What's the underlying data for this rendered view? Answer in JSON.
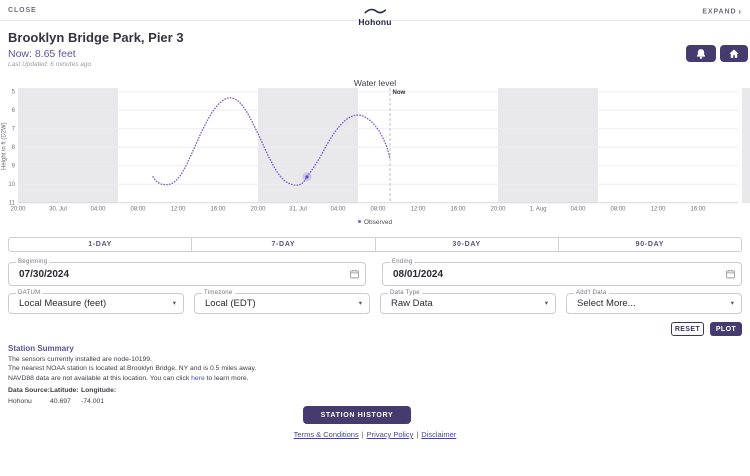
{
  "topbar": {
    "close": "CLOSE",
    "brand": "Hohonu",
    "expand": "EXPAND",
    "expand_chevron": "›"
  },
  "header": {
    "title": "Brooklyn Bridge Park, Pier 3",
    "now": "Now: 8.65 feet",
    "last_updated": "Last Updated: 6 minutes ago"
  },
  "chart_data": {
    "type": "line",
    "title": "Water level",
    "ylabel": "Height in ft (D2W)",
    "y_ticks": [
      5,
      6,
      7,
      8,
      9,
      10,
      11
    ],
    "y_inverted_axis": true,
    "ylim": [
      5,
      11
    ],
    "x_hours_domain": [
      0,
      72
    ],
    "x_domain_note": "hours since 2024-07-29 20:00 EDT",
    "x_ticks": [
      {
        "t": 0,
        "label": "20:00"
      },
      {
        "t": 4,
        "label": "30. Jul"
      },
      {
        "t": 8,
        "label": "04:00"
      },
      {
        "t": 12,
        "label": "08:00"
      },
      {
        "t": 16,
        "label": "12:00"
      },
      {
        "t": 20,
        "label": "16:00"
      },
      {
        "t": 24,
        "label": "20:00"
      },
      {
        "t": 28,
        "label": "31. Jul"
      },
      {
        "t": 32,
        "label": "04:00"
      },
      {
        "t": 36,
        "label": "08:00"
      },
      {
        "t": 40,
        "label": "12:00"
      },
      {
        "t": 44,
        "label": "16:00"
      },
      {
        "t": 48,
        "label": "20:00"
      },
      {
        "t": 52,
        "label": "1. Aug"
      },
      {
        "t": 56,
        "label": "04:00"
      },
      {
        "t": 60,
        "label": "08:00"
      },
      {
        "t": 64,
        "label": "12:00"
      },
      {
        "t": 68,
        "label": "16:00"
      }
    ],
    "night_bands": [
      [
        0,
        10
      ],
      [
        24,
        34
      ],
      [
        48,
        58
      ],
      [
        72.4,
        73.6
      ]
    ],
    "night_color": "#e9e9eb",
    "now_t": 37.2,
    "now_label": "Now",
    "legend": [
      {
        "label": "Observed",
        "color": "#7d5fc6"
      }
    ],
    "series": [
      {
        "name": "Observed",
        "color": "#7d5fc6",
        "points": [
          [
            13.5,
            9.6
          ],
          [
            13.8,
            9.82
          ],
          [
            14.2,
            9.97
          ],
          [
            14.7,
            10.02
          ],
          [
            15.2,
            10.0
          ],
          [
            15.7,
            9.85
          ],
          [
            16.2,
            9.55
          ],
          [
            16.7,
            9.1
          ],
          [
            17.2,
            8.55
          ],
          [
            17.7,
            7.95
          ],
          [
            18.2,
            7.35
          ],
          [
            18.7,
            6.8
          ],
          [
            19.2,
            6.3
          ],
          [
            19.7,
            5.9
          ],
          [
            20.2,
            5.6
          ],
          [
            20.7,
            5.4
          ],
          [
            21.2,
            5.33
          ],
          [
            21.7,
            5.4
          ],
          [
            22.2,
            5.6
          ],
          [
            22.7,
            5.95
          ],
          [
            23.2,
            6.4
          ],
          [
            23.7,
            6.95
          ],
          [
            24.2,
            7.5
          ],
          [
            24.7,
            8.1
          ],
          [
            25.2,
            8.65
          ],
          [
            25.7,
            9.15
          ],
          [
            26.2,
            9.55
          ],
          [
            26.7,
            9.83
          ],
          [
            27.2,
            9.98
          ],
          [
            27.7,
            10.05
          ],
          [
            28.2,
            10.02
          ],
          [
            28.6,
            9.85
          ],
          [
            28.9,
            9.6
          ],
          [
            29.3,
            9.3
          ],
          [
            29.8,
            8.9
          ],
          [
            30.3,
            8.45
          ],
          [
            30.8,
            7.95
          ],
          [
            31.3,
            7.5
          ],
          [
            31.8,
            7.1
          ],
          [
            32.3,
            6.78
          ],
          [
            32.8,
            6.52
          ],
          [
            33.3,
            6.35
          ],
          [
            33.8,
            6.27
          ],
          [
            34.3,
            6.28
          ],
          [
            34.8,
            6.4
          ],
          [
            35.3,
            6.6
          ],
          [
            35.8,
            6.9
          ],
          [
            36.3,
            7.3
          ],
          [
            36.7,
            7.75
          ],
          [
            37.0,
            8.2
          ],
          [
            37.2,
            8.65
          ]
        ]
      }
    ],
    "marker": {
      "t": 28.9,
      "v": 9.6
    }
  },
  "tabs": {
    "items": [
      {
        "label": "1-DAY"
      },
      {
        "label": "7-DAY"
      },
      {
        "label": "30-DAY"
      },
      {
        "label": "90-DAY"
      }
    ]
  },
  "form": {
    "beginning": {
      "label": "Beginning",
      "value": "07/30/2024"
    },
    "ending": {
      "label": "Ending",
      "value": "08/01/2024"
    },
    "datum": {
      "label": "DATUM",
      "value": "Local Measure (feet)"
    },
    "timezone": {
      "label": "Timezone",
      "value": "Local (EDT)"
    },
    "data_type": {
      "label": "Data Type",
      "value": "Raw Data"
    },
    "addl_data": {
      "label": "Add'l Data",
      "value": "Select More..."
    },
    "caret": "▾",
    "reset_label": "RESET",
    "plot_label": "PLOT"
  },
  "station_summary": {
    "heading": "Station Summary",
    "line1": "The sensors currently installed are node-10199.",
    "line2": "The nearest NOAA station is located at Brooklyn Bridge, NY and is 0.5 miles away.",
    "line3_pre": "NAVD88 data are not available at this location. You can click ",
    "line3_link": "here",
    "line3_post": " to learn more.",
    "table": {
      "headers": [
        "Data Source:",
        "Latitude:",
        "Longitude:"
      ],
      "row": [
        "Hohonu",
        "40.697",
        "-74.001"
      ]
    }
  },
  "actions": {
    "station_history": "STATION HISTORY"
  },
  "footer": {
    "links": [
      "Terms & Conditions",
      "Privacy Policy",
      "Disclaimer"
    ],
    "separator": "|"
  },
  "colors": {
    "accent_dark_purple": "#453b6e",
    "accent_indigo_text": "#5d55a6",
    "curve_purple": "#7d5fc6",
    "link_blue": "#4340bd",
    "night_band_gray": "#e9e9eb",
    "brand_navy": "#23224a"
  }
}
